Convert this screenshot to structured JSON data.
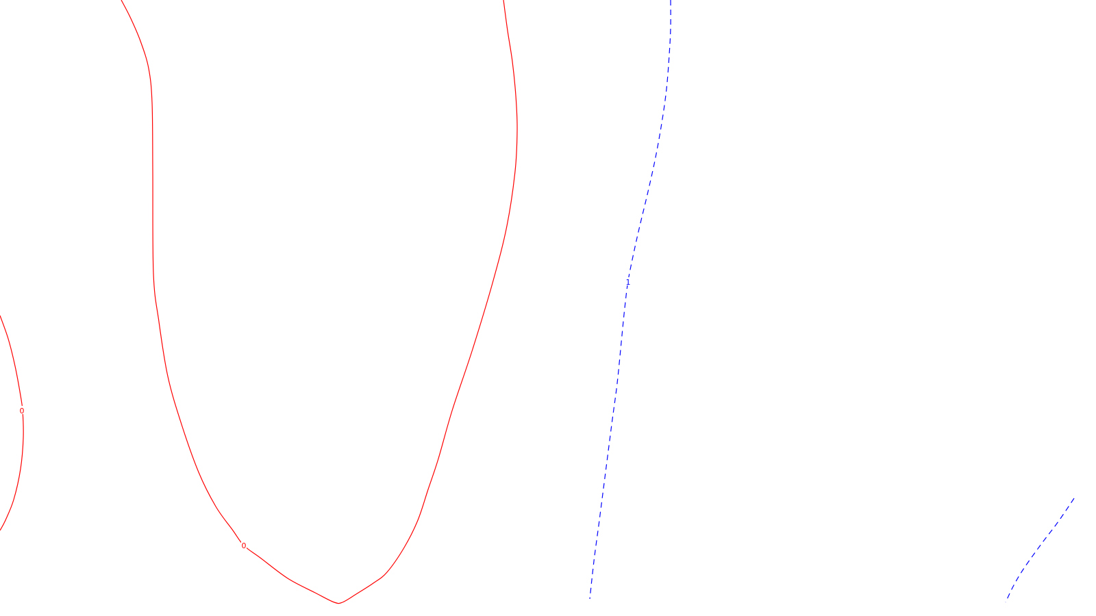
{
  "chart_data": {
    "type": "contour",
    "title": "",
    "xlabel": "",
    "ylabel": "",
    "grid": false,
    "legend": "none",
    "levels": [
      {
        "name": "contour-level-0",
        "level_label": "0",
        "color": "#ff0000",
        "dashed": false,
        "curves": [
          {
            "id": "contour-0-loop",
            "points": [
              [
                177,
                0
              ],
              [
                190,
                25
              ],
              [
                205,
                60
              ],
              [
                217,
                100
              ],
              [
                222,
                150
              ],
              [
                223,
                250
              ],
              [
                224,
                400
              ],
              [
                232,
                470
              ],
              [
                245,
                550
              ],
              [
                265,
                620
              ],
              [
                290,
                690
              ],
              [
                315,
                740
              ],
              [
                340,
                775
              ],
              [
                356,
                797
              ],
              [
                380,
                815
              ],
              [
                420,
                845
              ],
              [
                460,
                866
              ],
              [
                488,
                880
              ],
              [
                500,
                880
              ],
              [
                520,
                868
              ],
              [
                545,
                852
              ],
              [
                565,
                836
              ],
              [
                590,
                800
              ],
              [
                610,
                760
              ],
              [
                625,
                715
              ],
              [
                640,
                670
              ],
              [
                660,
                600
              ],
              [
                690,
                510
              ],
              [
                720,
                410
              ],
              [
                740,
                330
              ],
              [
                752,
                250
              ],
              [
                755,
                190
              ],
              [
                753,
                140
              ],
              [
                748,
                90
              ],
              [
                741,
                45
              ],
              [
                735,
                0
              ]
            ],
            "label_at": [
              356,
              797
            ]
          },
          {
            "id": "contour-0-left-arc",
            "points": [
              [
                0,
                461
              ],
              [
                12,
                495
              ],
              [
                22,
                535
              ],
              [
                30,
                578
              ],
              [
                33,
                600
              ],
              [
                34,
                640
              ],
              [
                30,
                685
              ],
              [
                20,
                730
              ],
              [
                8,
                760
              ],
              [
                0,
                775
              ]
            ],
            "label_at": [
              32,
              600
            ]
          }
        ]
      },
      {
        "name": "contour-level-1",
        "level_label": "1",
        "color": "#0000ff",
        "dashed": true,
        "curves": [
          {
            "id": "contour-1-main",
            "points": [
              [
                979,
                0
              ],
              [
                979,
                40
              ],
              [
                977,
                80
              ],
              [
                973,
                130
              ],
              [
                966,
                180
              ],
              [
                957,
                230
              ],
              [
                946,
                280
              ],
              [
                934,
                330
              ],
              [
                925,
                370
              ],
              [
                917,
                410
              ],
              [
                912,
                450
              ],
              [
                907,
                500
              ],
              [
                901,
                560
              ],
              [
                893,
                620
              ],
              [
                884,
                690
              ],
              [
                875,
                760
              ],
              [
                867,
                820
              ],
              [
                861,
                875
              ]
            ],
            "label_at": [
              917,
              412
            ]
          },
          {
            "id": "contour-1-right",
            "points": [
              [
                1568,
                728
              ],
              [
                1545,
                762
              ],
              [
                1520,
                795
              ],
              [
                1495,
                830
              ],
              [
                1480,
                855
              ],
              [
                1468,
                880
              ]
            ],
            "label_at": null
          }
        ]
      }
    ]
  }
}
